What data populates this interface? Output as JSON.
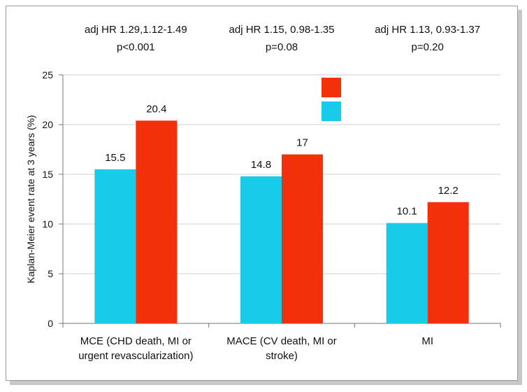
{
  "chart_data": {
    "type": "bar",
    "ylabel": "Kaplan-Meier event rate at 3 years (%)",
    "ylim": [
      0,
      25
    ],
    "yticks": [
      0,
      5,
      10,
      15,
      20,
      25
    ],
    "grid": true,
    "categories": [
      [
        "MCE (CHD death, MI or",
        "urgent revascularization)"
      ],
      [
        "MACE (CV death, MI or",
        "stroke)"
      ],
      [
        "MI"
      ]
    ],
    "hr_annotations": [
      [
        "adj HR 1.29,1.12-1.49",
        "p<0.001"
      ],
      [
        "adj HR 1.15, 0.98-1.35",
        "p=0.08"
      ],
      [
        "adj HR 1.13, 0.93-1.37",
        "p=0.20"
      ]
    ],
    "series": [
      {
        "values": [
          15.5,
          14.8,
          10.1
        ],
        "labels": [
          "15.5",
          "14.8",
          "10.1"
        ],
        "color": "#18cbe8"
      },
      {
        "values": [
          20.4,
          17,
          12.2
        ],
        "labels": [
          "20.4",
          "17",
          "12.2"
        ],
        "color": "#f2300a"
      }
    ],
    "legend": {
      "placement": "top-center",
      "entries": [
        {
          "color": "#f2300a"
        },
        {
          "color": "#18cbe8"
        }
      ]
    }
  }
}
